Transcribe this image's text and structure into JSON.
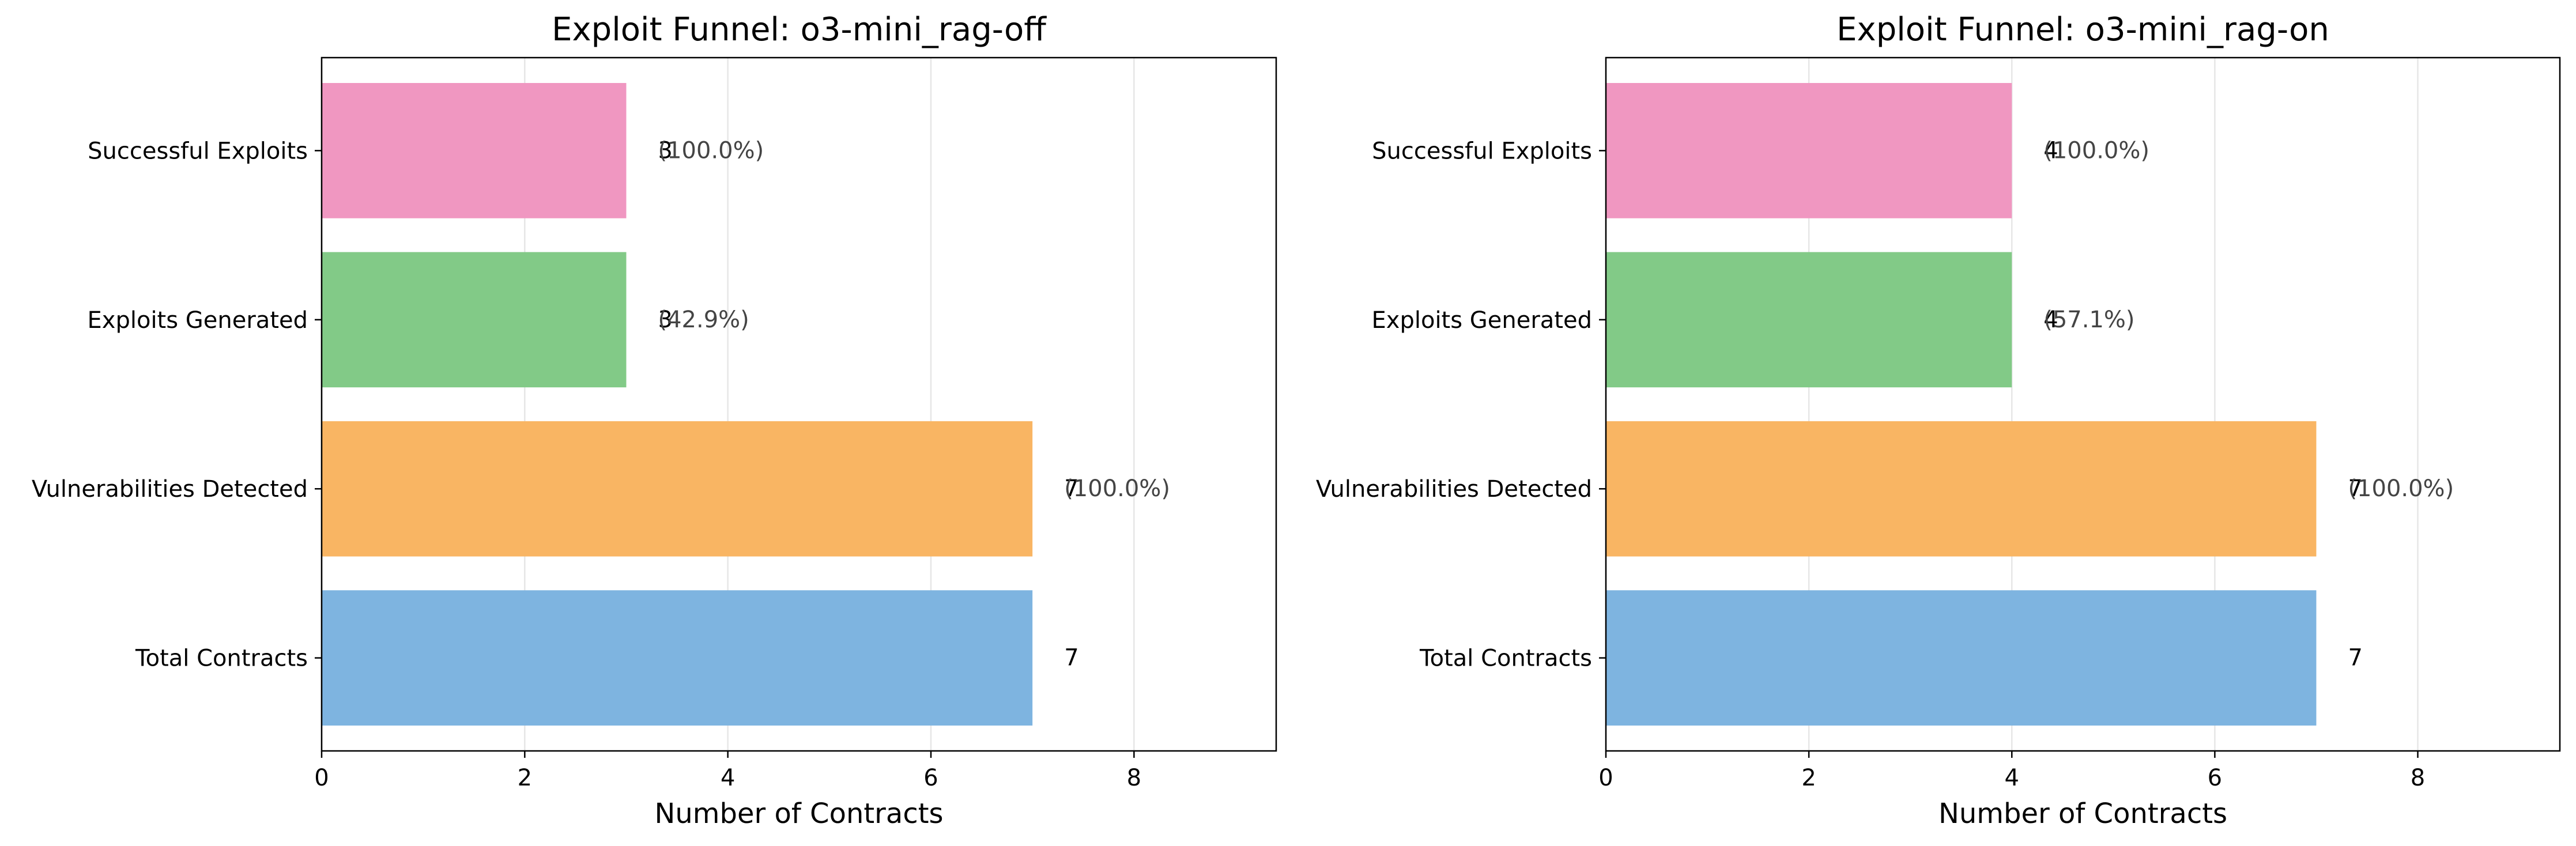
{
  "chart_data": [
    {
      "type": "bar",
      "orientation": "horizontal",
      "title": "Exploit Funnel: o3-mini_rag-off",
      "xlabel": "Number of Contracts",
      "ylabel": "",
      "xlim": [
        0,
        9.4
      ],
      "x_ticks": [
        "0",
        "2",
        "4",
        "6",
        "8"
      ],
      "grid": "x",
      "categories": [
        "Total Contracts",
        "Vulnerabilities Detected",
        "Exploits Generated",
        "Successful Exploits"
      ],
      "values": [
        7,
        7,
        3,
        3
      ],
      "value_labels": [
        "7",
        "7",
        "3",
        "3"
      ],
      "percent_labels": [
        "",
        "(100.0%)",
        "(42.9%)",
        "(100.0%)"
      ]
    },
    {
      "type": "bar",
      "orientation": "horizontal",
      "title": "Exploit Funnel: o3-mini_rag-on",
      "xlabel": "Number of Contracts",
      "ylabel": "",
      "xlim": [
        0,
        9.4
      ],
      "x_ticks": [
        "0",
        "2",
        "4",
        "6",
        "8"
      ],
      "grid": "x",
      "categories": [
        "Total Contracts",
        "Vulnerabilities Detected",
        "Exploits Generated",
        "Successful Exploits"
      ],
      "values": [
        7,
        7,
        4,
        4
      ],
      "value_labels": [
        "7",
        "7",
        "4",
        "4"
      ],
      "percent_labels": [
        "",
        "(100.0%)",
        "(57.1%)",
        "(100.0%)"
      ]
    }
  ],
  "colors": {
    "Total Contracts": "#7eb4e0",
    "Vulnerabilities Detected": "#f9b563",
    "Exploits Generated": "#82ca87",
    "Successful Exploits": "#f097c1",
    "grid": "#e6e6e6",
    "axis": "#000000",
    "percent_text": "#444444"
  }
}
